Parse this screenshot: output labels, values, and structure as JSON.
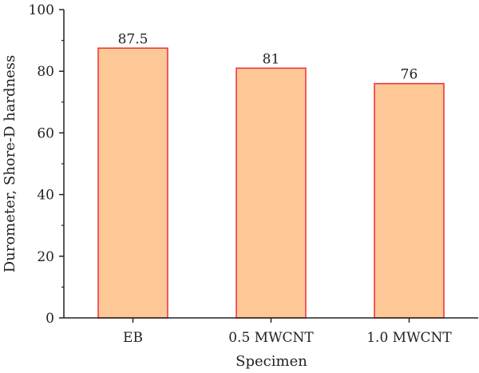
{
  "chart_data": {
    "type": "bar",
    "title": "",
    "xlabel": "Specimen",
    "ylabel": "Durometer, Shore-D hardness",
    "categories": [
      "EB",
      "0.5 MWCNT",
      "1.0 MWCNT"
    ],
    "values": [
      87.5,
      81,
      76
    ],
    "data_labels": [
      "87.5",
      "81",
      "76"
    ],
    "ylim": [
      0,
      100
    ],
    "yticks": [
      0,
      20,
      40,
      60,
      80,
      100
    ],
    "ytick_labels": [
      "0",
      "20",
      "40",
      "60",
      "80",
      "100"
    ],
    "grid": false,
    "legend": "none",
    "colors": {
      "bar_fill": "#fdc896",
      "bar_edge": "#e8303a",
      "axis": "#222222"
    }
  }
}
